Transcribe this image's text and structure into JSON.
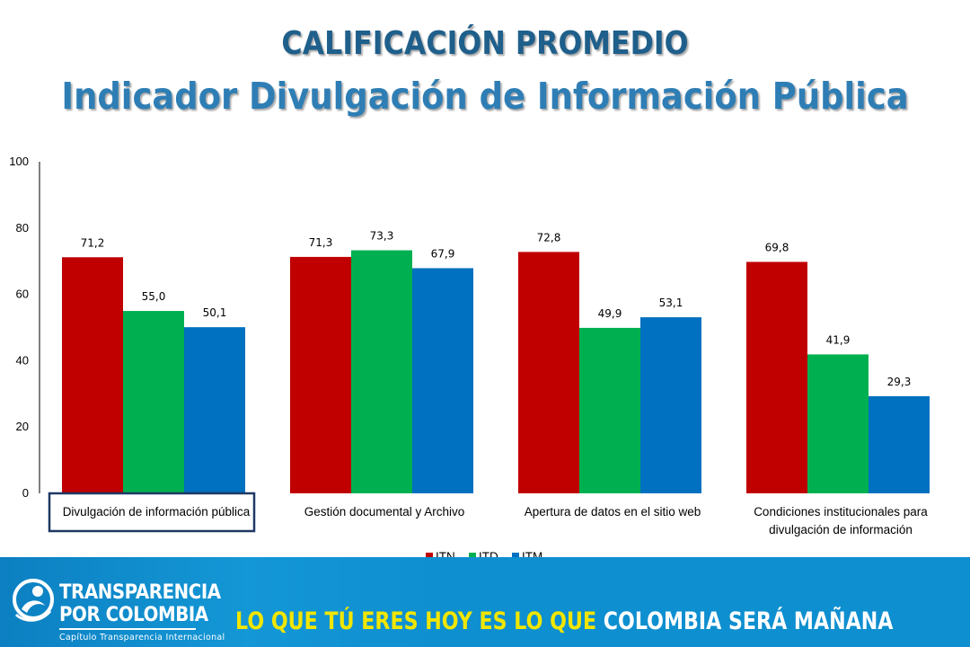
{
  "title_line1": "CALIFICACIÓN PROMEDIO",
  "title_line2": "Indicador Divulgación de Información Pública",
  "colors": {
    "title1": "#1f5f8b",
    "title2": "#2e7eb5",
    "ITN": "#c00000",
    "ITD": "#00b050",
    "ITM": "#0070c0",
    "highlight_box": "#1f3864",
    "footer_bg": "#0e8fd0",
    "slogan_yellow": "#f2e600"
  },
  "chart_data": {
    "type": "bar",
    "categories": [
      [
        "Divulgación de información pública"
      ],
      [
        "Gestión documental y Archivo"
      ],
      [
        "Apertura de datos en el sitio web"
      ],
      [
        "Condiciones institucionales  para",
        "divulgación de información"
      ]
    ],
    "series": [
      {
        "name": "ITN",
        "values": [
          71.2,
          71.3,
          72.8,
          69.8
        ],
        "labels": [
          "71,2",
          "71,3",
          "72,8",
          "69,8"
        ]
      },
      {
        "name": "ITD",
        "values": [
          55.0,
          73.3,
          49.9,
          41.9
        ],
        "labels": [
          "55,0",
          "73,3",
          "49,9",
          "41,9"
        ]
      },
      {
        "name": "ITM",
        "values": [
          50.1,
          67.9,
          53.1,
          29.3
        ],
        "labels": [
          "50,1",
          "67,9",
          "53,1",
          "29,3"
        ]
      }
    ],
    "ylim": [
      0,
      100
    ],
    "yticks": [
      "0",
      "20",
      "40",
      "60",
      "80",
      "100"
    ],
    "highlighted_category": "Divulgación de información pública",
    "legend_position": "bottom",
    "grid": false
  },
  "footer": {
    "logo_line1": "TRANSPARENCIA",
    "logo_line2": "POR COLOMBIA",
    "logo_line3": "Capítulo Transparencia Internacional",
    "slogan_part1": "LO QUE TÚ ERES HOY ES LO QUE",
    "slogan_part2": " COLOMBIA SERÁ MAÑANA"
  }
}
